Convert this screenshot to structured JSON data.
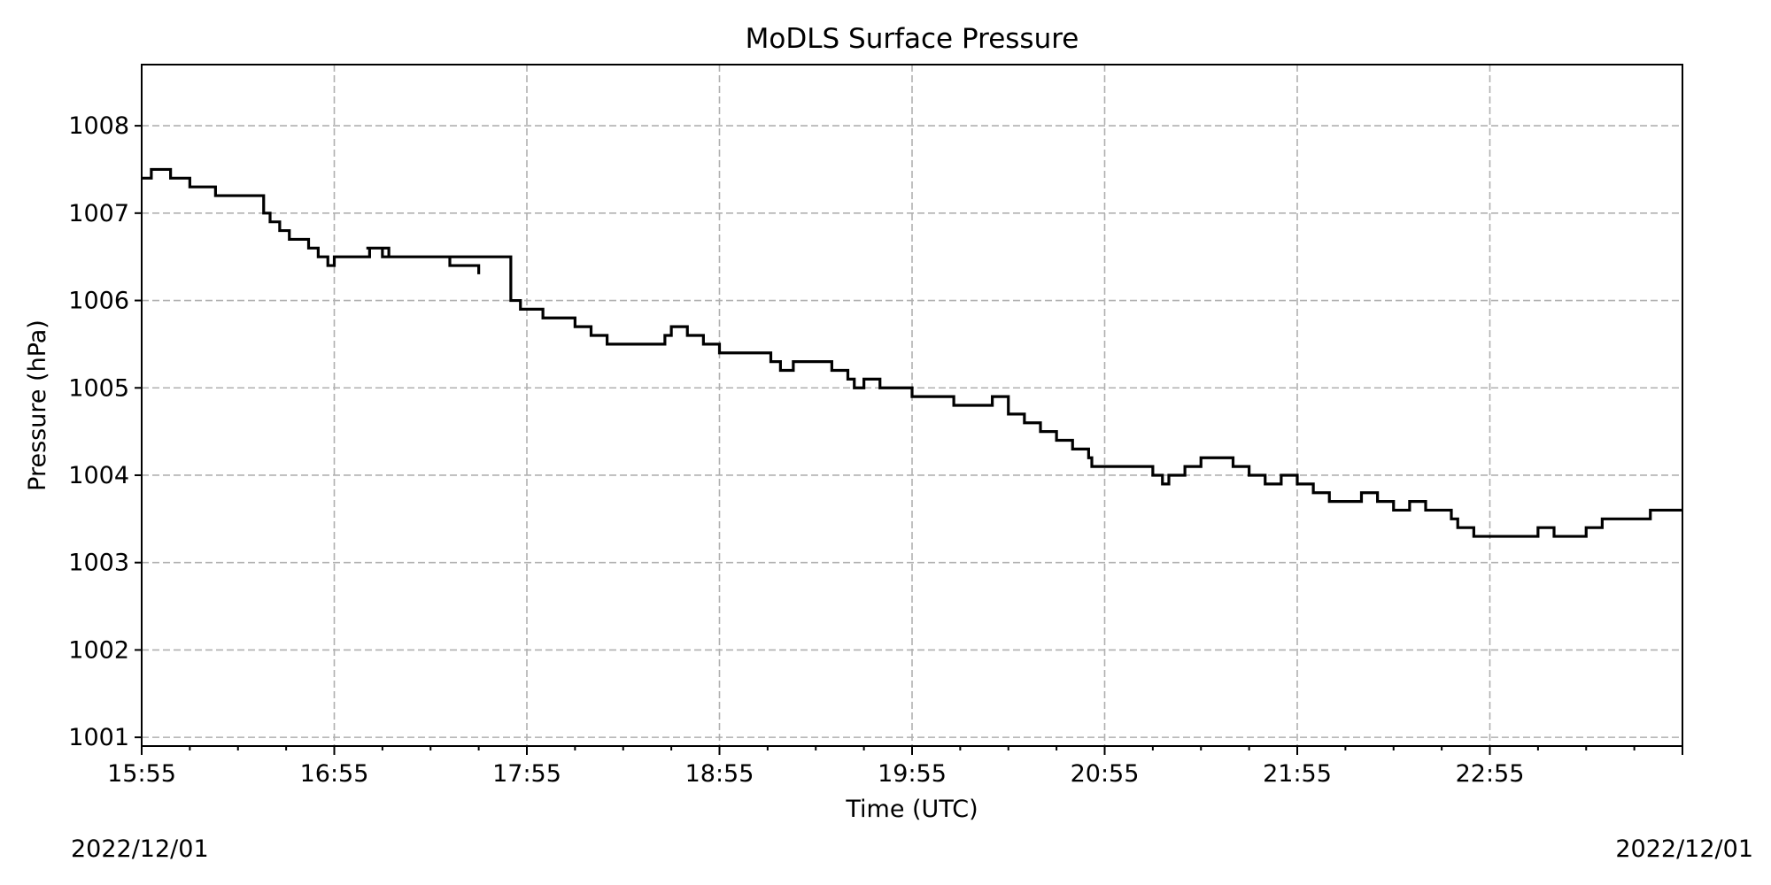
{
  "chart_data": {
    "type": "line",
    "title": "MoDLS Surface Pressure",
    "xlabel": "Time (UTC)",
    "ylabel": "Pressure (hPa)",
    "x_tick_labels": [
      "15:55",
      "16:55",
      "17:55",
      "18:55",
      "19:55",
      "20:55",
      "21:55",
      "22:55"
    ],
    "x_ticks_minutes": [
      0,
      60,
      120,
      180,
      240,
      300,
      360,
      420
    ],
    "xlim_minutes": [
      0,
      480
    ],
    "y_tick_labels": [
      "1001",
      "1002",
      "1003",
      "1004",
      "1005",
      "1006",
      "1007",
      "1008"
    ],
    "y_ticks": [
      1001,
      1002,
      1003,
      1004,
      1005,
      1006,
      1007,
      1008
    ],
    "ylim": [
      1000.9,
      1008.7
    ],
    "date_start": "2022/12/01",
    "date_end": "2022/12/01",
    "grid": true,
    "line_color": "#000000",
    "series": [
      {
        "x_minutes": [
          0,
          2,
          3,
          8,
          9,
          15,
          18,
          23,
          38,
          40,
          43,
          46,
          52,
          55,
          58,
          60,
          62,
          65,
          70,
          71,
          75,
          77,
          96,
          105,
          70,
          71,
          75,
          77,
          115,
          118,
          125,
          135,
          140,
          145,
          162,
          163,
          165,
          170,
          175,
          180,
          196,
          199,
          203,
          205,
          215,
          220,
          222,
          225,
          230,
          240,
          253,
          265,
          270,
          275,
          280,
          285,
          290,
          295,
          296,
          315,
          318,
          320,
          325,
          330,
          340,
          345,
          350,
          355,
          360,
          365,
          370,
          380,
          385,
          390,
          395,
          400,
          408,
          410,
          415,
          425,
          430,
          435,
          440,
          445,
          450,
          455,
          460,
          470,
          480
        ],
        "y": [
          1007.4,
          1007.4,
          1007.5,
          1007.5,
          1007.4,
          1007.3,
          1007.3,
          1007.2,
          1007.0,
          1006.9,
          1006.8,
          1006.7,
          1006.6,
          1006.5,
          1006.4,
          1006.5,
          1006.5,
          1006.5,
          1006.5,
          1006.6,
          1006.6,
          1006.5,
          1006.4,
          1006.3,
          1006.6,
          1006.6,
          1006.5,
          1006.5,
          1006.0,
          1005.9,
          1005.8,
          1005.7,
          1005.6,
          1005.5,
          1005.5,
          1005.6,
          1005.7,
          1005.6,
          1005.5,
          1005.4,
          1005.3,
          1005.2,
          1005.3,
          1005.3,
          1005.2,
          1005.1,
          1005.0,
          1005.1,
          1005.0,
          1004.9,
          1004.8,
          1004.9,
          1004.7,
          1004.6,
          1004.5,
          1004.4,
          1004.3,
          1004.2,
          1004.1,
          1004.0,
          1003.9,
          1004.0,
          1004.1,
          1004.2,
          1004.1,
          1004.0,
          1003.9,
          1004.0,
          1003.9,
          1003.8,
          1003.7,
          1003.8,
          1003.7,
          1003.6,
          1003.7,
          1003.6,
          1003.5,
          1003.4,
          1003.3,
          1003.3,
          1003.3,
          1003.4,
          1003.3,
          1003.3,
          1003.4,
          1003.5,
          1003.5,
          1003.6,
          1003.6
        ]
      }
    ]
  }
}
